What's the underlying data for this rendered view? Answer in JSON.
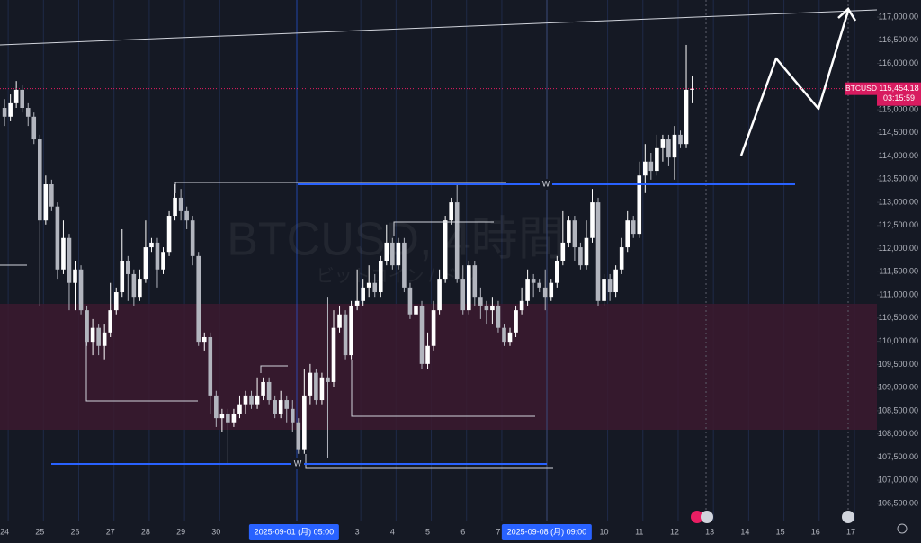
{
  "chart_data": {
    "type": "candlestick",
    "watermark": "BTCUSD, 4時間",
    "watermark_sub": "ビットコイン / ドル",
    "up_color": "#ffffff",
    "down_color": "#b2b5be",
    "xlim": [
      -0.13,
      24.74
    ],
    "ylim": [
      106110,
      117370
    ],
    "x_grid": true,
    "xticks": [
      {
        "value": 0,
        "label": "24"
      },
      {
        "value": 1,
        "label": "25"
      },
      {
        "value": 2,
        "label": "26"
      },
      {
        "value": 3,
        "label": "27"
      },
      {
        "value": 4,
        "label": "28"
      },
      {
        "value": 5,
        "label": "29"
      },
      {
        "value": 6,
        "label": "30"
      },
      {
        "value": 10,
        "label": "3"
      },
      {
        "value": 11,
        "label": "4"
      },
      {
        "value": 12,
        "label": "5"
      },
      {
        "value": 13,
        "label": "6"
      },
      {
        "value": 14,
        "label": "7"
      },
      {
        "value": 17,
        "label": "10"
      },
      {
        "value": 18,
        "label": "11"
      },
      {
        "value": 19,
        "label": "12"
      },
      {
        "value": 20,
        "label": "13"
      },
      {
        "value": 21,
        "label": "14"
      },
      {
        "value": 22,
        "label": "15"
      },
      {
        "value": 23,
        "label": "16"
      },
      {
        "value": 24,
        "label": "17"
      }
    ],
    "x_crosshairs": [
      {
        "value": 8.208,
        "label": "2025-09-01 (月)   05:00"
      },
      {
        "value": 15.375,
        "label": "2025-09-08 (月)   09:00"
      }
    ],
    "yticks": [
      {
        "value": 106500,
        "label": "106,500.00"
      },
      {
        "value": 107000,
        "label": "107,000.00"
      },
      {
        "value": 107500,
        "label": "107,500.00"
      },
      {
        "value": 108000,
        "label": "108,000.00"
      },
      {
        "value": 108500,
        "label": "108,500.00"
      },
      {
        "value": 109000,
        "label": "109,000.00"
      },
      {
        "value": 109500,
        "label": "109,500.00"
      },
      {
        "value": 110000,
        "label": "110,000.00"
      },
      {
        "value": 110500,
        "label": "110,500.00"
      },
      {
        "value": 111000,
        "label": "111,000.00"
      },
      {
        "value": 111500,
        "label": "111,500.00"
      },
      {
        "value": 112000,
        "label": "112,000.00"
      },
      {
        "value": 112500,
        "label": "112,500.00"
      },
      {
        "value": 113000,
        "label": "113,000.00"
      },
      {
        "value": 113500,
        "label": "113,500.00"
      },
      {
        "value": 114000,
        "label": "114,000.00"
      },
      {
        "value": 114500,
        "label": "114,500.00"
      },
      {
        "value": 115000,
        "label": "115,000.00"
      },
      {
        "value": 115500,
        "label": "115,500.00"
      },
      {
        "value": 116000,
        "label": "116,000.00"
      },
      {
        "value": 116500,
        "label": "116,500.00"
      },
      {
        "value": 117000,
        "label": "117,000.00"
      }
    ],
    "level_labels": [
      "W",
      "W"
    ],
    "price_tag": {
      "symbol": "BTCUSD",
      "value": 115454.18,
      "label": "115,454.18",
      "countdown": "03:15:59"
    },
    "candles": [
      [
        0,
        115040,
        115230,
        114650,
        114850
      ],
      [
        0.167,
        114850,
        115330,
        114750,
        115140
      ],
      [
        0.333,
        115140,
        115620,
        115040,
        115430
      ],
      [
        0.5,
        115430,
        115530,
        114940,
        115040
      ],
      [
        0.667,
        115040,
        115140,
        114650,
        114850
      ],
      [
        0.833,
        114850,
        114940,
        114260,
        114360
      ],
      [
        1,
        114360,
        114460,
        110770,
        112610
      ],
      [
        1.167,
        112610,
        113580,
        112520,
        113390
      ],
      [
        1.333,
        113390,
        113490,
        112810,
        112910
      ],
      [
        1.5,
        112910,
        113000,
        111350,
        111550
      ],
      [
        1.667,
        111550,
        112610,
        111450,
        112230
      ],
      [
        1.833,
        112230,
        112320,
        110670,
        111260
      ],
      [
        2,
        111260,
        111740,
        110670,
        111550
      ],
      [
        2.167,
        111550,
        111640,
        110580,
        110670
      ],
      [
        2.333,
        110670,
        110770,
        109900,
        109990
      ],
      [
        2.5,
        109990,
        110480,
        109700,
        110290
      ],
      [
        2.667,
        110290,
        110380,
        109700,
        109900
      ],
      [
        2.833,
        109900,
        110380,
        109610,
        110190
      ],
      [
        3,
        110190,
        111260,
        110090,
        110670
      ],
      [
        3.167,
        110670,
        111160,
        110580,
        111060
      ],
      [
        3.333,
        111060,
        112420,
        110960,
        111740
      ],
      [
        3.5,
        111740,
        111840,
        110870,
        111450
      ],
      [
        3.667,
        111450,
        111550,
        110770,
        110960
      ],
      [
        3.833,
        110960,
        111550,
        110870,
        111350
      ],
      [
        4,
        111350,
        112610,
        111260,
        112030
      ],
      [
        4.167,
        112030,
        112230,
        111930,
        112130
      ],
      [
        4.333,
        112130,
        112230,
        111160,
        111550
      ],
      [
        4.5,
        111550,
        112030,
        111450,
        111930
      ],
      [
        4.667,
        111930,
        112810,
        111840,
        112710
      ],
      [
        4.833,
        112710,
        113390,
        112610,
        113100
      ],
      [
        5,
        113100,
        113290,
        112610,
        112810
      ],
      [
        5.167,
        112810,
        112910,
        112420,
        112610
      ],
      [
        5.333,
        112610,
        112710,
        111640,
        111840
      ],
      [
        5.5,
        111840,
        111930,
        109900,
        109990
      ],
      [
        5.667,
        109990,
        110190,
        109800,
        110090
      ],
      [
        5.833,
        110090,
        110190,
        108440,
        108830
      ],
      [
        6,
        108830,
        108930,
        108150,
        108340
      ],
      [
        6.167,
        108340,
        108540,
        108050,
        108440
      ],
      [
        6.333,
        108440,
        108540,
        107370,
        108250
      ],
      [
        6.5,
        108250,
        108540,
        108150,
        108440
      ],
      [
        6.667,
        108440,
        108830,
        108340,
        108640
      ],
      [
        6.833,
        108640,
        108930,
        108440,
        108830
      ],
      [
        7,
        108830,
        108930,
        108540,
        108640
      ],
      [
        7.167,
        108640,
        109220,
        108540,
        108830
      ],
      [
        7.333,
        108830,
        109220,
        108730,
        109120
      ],
      [
        7.5,
        109120,
        109220,
        108640,
        108730
      ],
      [
        7.667,
        108730,
        108830,
        108340,
        108440
      ],
      [
        7.833,
        108440,
        108930,
        108340,
        108730
      ],
      [
        8,
        108730,
        108830,
        108250,
        108540
      ],
      [
        8.167,
        108540,
        108730,
        108050,
        108250
      ],
      [
        8.333,
        108250,
        108340,
        107570,
        107670
      ],
      [
        8.5,
        107670,
        109410,
        107570,
        108830
      ],
      [
        8.667,
        108830,
        109510,
        108640,
        109320
      ],
      [
        8.833,
        109320,
        109410,
        108640,
        108730
      ],
      [
        9,
        108730,
        109320,
        108640,
        109220
      ],
      [
        9.167,
        109220,
        110960,
        107470,
        109120
      ],
      [
        9.333,
        109120,
        110670,
        109020,
        110290
      ],
      [
        9.5,
        110290,
        110770,
        110190,
        110580
      ],
      [
        9.667,
        110580,
        110670,
        109610,
        109700
      ],
      [
        9.833,
        109700,
        110870,
        109610,
        110770
      ],
      [
        10,
        110770,
        111550,
        110670,
        110870
      ],
      [
        10.167,
        110870,
        111350,
        110770,
        111160
      ],
      [
        10.333,
        111160,
        111640,
        110960,
        111260
      ],
      [
        10.5,
        111260,
        111450,
        110960,
        111060
      ],
      [
        10.667,
        111060,
        111840,
        110960,
        111740
      ],
      [
        10.833,
        111740,
        112520,
        111640,
        112130
      ],
      [
        11,
        112130,
        112230,
        111550,
        111640
      ],
      [
        11.167,
        111640,
        112230,
        111550,
        112130
      ],
      [
        11.333,
        112130,
        112230,
        111060,
        111160
      ],
      [
        11.5,
        111160,
        111260,
        110480,
        110580
      ],
      [
        11.667,
        110580,
        110960,
        110380,
        110770
      ],
      [
        11.833,
        110770,
        110870,
        109410,
        109510
      ],
      [
        12,
        109510,
        110190,
        109410,
        109900
      ],
      [
        12.167,
        109900,
        110870,
        109800,
        110670
      ],
      [
        12.333,
        110670,
        111550,
        110580,
        111350
      ],
      [
        12.5,
        111350,
        112710,
        111260,
        112610
      ],
      [
        12.667,
        112610,
        113100,
        112520,
        113000
      ],
      [
        12.833,
        113000,
        113390,
        111260,
        111350
      ],
      [
        13,
        111350,
        111640,
        110580,
        110670
      ],
      [
        13.167,
        110670,
        111740,
        110580,
        111640
      ],
      [
        13.333,
        111640,
        111740,
        110770,
        110960
      ],
      [
        13.5,
        110960,
        111160,
        110480,
        110770
      ],
      [
        13.667,
        110770,
        110870,
        110380,
        110670
      ],
      [
        13.833,
        110670,
        110960,
        110380,
        110770
      ],
      [
        14,
        110770,
        110870,
        110190,
        110290
      ],
      [
        14.167,
        110290,
        110380,
        109900,
        109990
      ],
      [
        14.333,
        109990,
        110290,
        109900,
        110190
      ],
      [
        14.5,
        110190,
        110770,
        110090,
        110670
      ],
      [
        14.667,
        110670,
        111160,
        110580,
        110870
      ],
      [
        14.833,
        110870,
        111550,
        110770,
        111350
      ],
      [
        15,
        111350,
        111450,
        110960,
        111260
      ],
      [
        15.167,
        111260,
        111350,
        111060,
        111160
      ],
      [
        15.333,
        111160,
        111550,
        110670,
        110960
      ],
      [
        15.5,
        110960,
        111350,
        110870,
        111260
      ],
      [
        15.667,
        111260,
        111840,
        111160,
        111740
      ],
      [
        15.833,
        111740,
        112810,
        111640,
        112130
      ],
      [
        16,
        112130,
        112710,
        112030,
        112610
      ],
      [
        16.167,
        112610,
        112710,
        111740,
        112030
      ],
      [
        16.333,
        112030,
        112130,
        111550,
        111640
      ],
      [
        16.5,
        111640,
        112610,
        111550,
        112230
      ],
      [
        16.667,
        112230,
        113290,
        112130,
        113000
      ],
      [
        16.833,
        113000,
        113100,
        110770,
        110870
      ],
      [
        17,
        110870,
        111450,
        110770,
        111350
      ],
      [
        17.167,
        111350,
        111450,
        110870,
        111060
      ],
      [
        17.333,
        111060,
        111640,
        110960,
        111550
      ],
      [
        17.5,
        111550,
        112230,
        111450,
        112030
      ],
      [
        17.667,
        112030,
        112810,
        111930,
        112610
      ],
      [
        17.833,
        112610,
        112710,
        112230,
        112320
      ],
      [
        18,
        112320,
        113880,
        112230,
        113580
      ],
      [
        18.167,
        113580,
        114260,
        113200,
        113880
      ],
      [
        18.333,
        113880,
        114070,
        113490,
        113680
      ],
      [
        18.5,
        113680,
        114460,
        113580,
        114170
      ],
      [
        18.667,
        114170,
        114460,
        113880,
        114360
      ],
      [
        18.833,
        114360,
        114460,
        113780,
        113970
      ],
      [
        19,
        113970,
        114650,
        113490,
        114460
      ],
      [
        19.167,
        114460,
        114550,
        114170,
        114260
      ],
      [
        19.333,
        114260,
        116400,
        114170,
        115430
      ],
      [
        19.5,
        115430,
        115720,
        115140,
        115454.18
      ]
    ]
  }
}
